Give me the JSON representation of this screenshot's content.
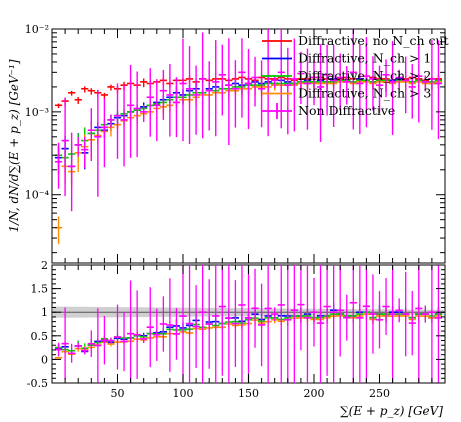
{
  "chart_data": [
    {
      "type": "scatter",
      "panel": "main",
      "ylabel": "1/N, dN/d∑(E + p_z) [GeV⁻¹]",
      "yscale": "log",
      "ylim": [
        1.5e-05,
        0.01
      ],
      "xlim": [
        0,
        300
      ],
      "y_ticks": [
        {
          "value": 0.0001,
          "label": "10⁻⁴"
        },
        {
          "value": 0.001,
          "label": "10⁻³"
        },
        {
          "value": 0.01,
          "label": "10⁻²"
        }
      ],
      "legend": {
        "placement": "top-right"
      },
      "x": [
        5,
        10,
        15,
        20,
        25,
        30,
        35,
        40,
        45,
        50,
        55,
        60,
        65,
        70,
        75,
        80,
        85,
        90,
        95,
        100,
        105,
        110,
        115,
        120,
        125,
        130,
        135,
        140,
        145,
        150,
        155,
        160,
        165,
        170,
        175,
        180,
        185,
        190,
        195,
        200,
        205,
        210,
        215,
        220,
        225,
        230,
        235,
        240,
        245,
        250,
        255,
        260,
        265,
        270,
        275,
        280,
        285,
        290,
        295
      ],
      "series": [
        {
          "name": "Diffractive, no N_ch cut",
          "color": "#ff0000",
          "values": [
            0.0012,
            0.00135,
            0.0017,
            0.0014,
            0.0019,
            0.0018,
            0.0017,
            0.0016,
            0.002,
            0.0019,
            0.0021,
            0.0022,
            0.0021,
            0.0023,
            0.0022,
            0.0023,
            0.0024,
            0.0022,
            0.0024,
            0.0024,
            0.0025,
            0.0023,
            0.0025,
            0.0024,
            0.0025,
            0.0025,
            0.0024,
            0.0025,
            0.0026,
            0.0025,
            0.0024,
            0.0026,
            0.0025,
            0.0025,
            0.0026,
            0.0025,
            0.0024,
            0.0025,
            0.0025,
            0.0026,
            0.0026,
            0.0025,
            0.0024,
            0.0025,
            0.0026,
            0.0025,
            0.0025,
            0.0024,
            0.0026,
            0.0025,
            0.0025,
            0.0024,
            0.0025,
            0.0025,
            0.0026,
            0.0025,
            0.0024,
            0.0025,
            0.0025
          ]
        },
        {
          "name": "Diffractive, N_ch > 1",
          "color": "#0000ff",
          "values": [
            0.00028,
            0.00036,
            0.00022,
            0.0004,
            0.00032,
            0.00055,
            0.00065,
            0.0006,
            0.00072,
            0.00085,
            0.0009,
            0.001,
            0.00105,
            0.00115,
            0.0012,
            0.0013,
            0.0014,
            0.0015,
            0.0017,
            0.0016,
            0.0018,
            0.0019,
            0.0017,
            0.0019,
            0.002,
            0.0019,
            0.0021,
            0.0022,
            0.0021,
            0.0022,
            0.0023,
            0.0022,
            0.0023,
            0.0022,
            0.0024,
            0.0023,
            0.0022,
            0.0023,
            0.0024,
            0.0023,
            0.0024,
            0.0023,
            0.0025,
            0.0024,
            0.0024,
            0.0023,
            0.0025,
            0.0024,
            0.0023,
            0.0024,
            0.0023,
            0.0024,
            0.0025,
            0.0024,
            0.0023,
            0.0024,
            0.0023,
            0.0022,
            0.0024
          ]
        },
        {
          "name": "Diffractive, N_ch > 2",
          "color": "#00cc00",
          "values": [
            0.0003,
            0.00028,
            0.00031,
            0.0004,
            0.00045,
            0.00055,
            0.0006,
            0.0007,
            0.0008,
            0.0009,
            0.00095,
            0.001,
            0.00105,
            0.0011,
            0.0012,
            0.00125,
            0.0013,
            0.0014,
            0.0015,
            0.0015,
            0.0016,
            0.0017,
            0.0017,
            0.0018,
            0.0018,
            0.0019,
            0.0019,
            0.002,
            0.002,
            0.0021,
            0.0021,
            0.0021,
            0.0022,
            0.0022,
            0.0022,
            0.0022,
            0.0022,
            0.0023,
            0.0023,
            0.0023,
            0.0023,
            0.0023,
            0.0023,
            0.0024,
            0.0024,
            0.0023,
            0.0024,
            0.0024,
            0.0023,
            0.0024,
            0.0024,
            0.0023,
            0.0024,
            0.0024,
            0.0023,
            0.0024,
            0.0023,
            0.0023,
            0.0024
          ]
        },
        {
          "name": "Diffractive, N_ch > 3",
          "color": "#ff8c00",
          "values": [
            4e-05,
            0.00022,
            0.00019,
            0.00032,
            0.00038,
            0.00046,
            0.00052,
            0.00058,
            0.00065,
            0.0007,
            0.00078,
            0.00085,
            0.0009,
            0.00095,
            0.001,
            0.0011,
            0.00115,
            0.0012,
            0.0013,
            0.0014,
            0.0014,
            0.0015,
            0.0016,
            0.0016,
            0.0017,
            0.0017,
            0.0018,
            0.0018,
            0.0019,
            0.0019,
            0.002,
            0.002,
            0.002,
            0.0021,
            0.0021,
            0.0021,
            0.0021,
            0.0022,
            0.0022,
            0.0022,
            0.0022,
            0.0022,
            0.0022,
            0.0023,
            0.0023,
            0.0022,
            0.0023,
            0.0023,
            0.0022,
            0.0023,
            0.0023,
            0.0022,
            0.0023,
            0.0023,
            0.0022,
            0.0023,
            0.0022,
            0.0022,
            0.0023
          ]
        },
        {
          "name": "Non Diffractive",
          "color": "#ff00ff",
          "values": [
            0.00025,
            0.00045,
            0.00022,
            0.0004,
            0.00035,
            0.0006,
            0.0005,
            0.00065,
            0.0008,
            0.0009,
            0.0008,
            0.0012,
            0.0011,
            0.001,
            0.0015,
            0.0012,
            0.0018,
            0.0016,
            0.0013,
            0.0022,
            0.0019,
            0.0016,
            0.0025,
            0.0018,
            0.0023,
            0.0028,
            0.0021,
            0.0019,
            0.003,
            0.0022,
            0.0026,
            0.0019,
            0.0027,
            0.0024,
            0.003,
            0.0021,
            0.0025,
            0.0029,
            0.0022,
            0.0026,
            0.002,
            0.0028,
            0.0024,
            0.0026,
            0.0023,
            0.003,
            0.0022,
            0.0027,
            0.0025,
            0.0021,
            0.0028,
            0.0023,
            0.0026,
            0.0024,
            0.002,
            0.0027,
            0.0023,
            0.0025,
            0.0022
          ]
        }
      ]
    },
    {
      "type": "scatter",
      "panel": "ratio",
      "xlabel": "∑(E + p_z) [GeV]",
      "ylim": [
        -0.5,
        2
      ],
      "xlim": [
        0,
        300
      ],
      "x_ticks": [
        {
          "value": 50,
          "label": "50"
        },
        {
          "value": 100,
          "label": "100"
        },
        {
          "value": 150,
          "label": "150"
        },
        {
          "value": 200,
          "label": "200"
        },
        {
          "value": 250,
          "label": "250"
        }
      ],
      "y_ticks": [
        {
          "value": -0.5,
          "label": "-0.5"
        },
        {
          "value": 0,
          "label": "0"
        },
        {
          "value": 0.5,
          "label": "0.5"
        },
        {
          "value": 1,
          "label": "1"
        },
        {
          "value": 1.5,
          "label": "1.5"
        },
        {
          "value": 2,
          "label": "2"
        }
      ],
      "reference_band": {
        "center": 1,
        "halfwidth_min": 0.05,
        "halfwidth_max": 0.12,
        "color": "#aaaaaa"
      },
      "ratio_to_first": true
    }
  ]
}
